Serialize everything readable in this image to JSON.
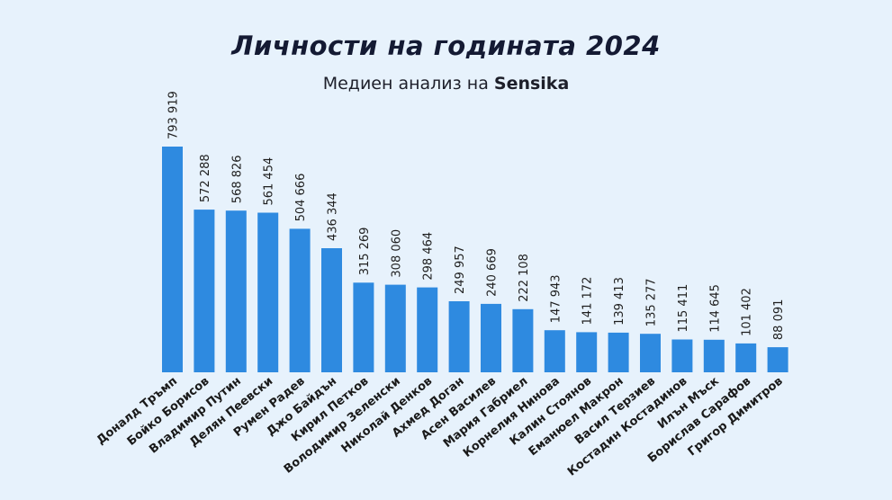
{
  "chart_data": {
    "type": "bar",
    "title": "Личности на годината 2024",
    "subtitle_prefix": "Медиен анализ на ",
    "subtitle_brand": "Sensika",
    "categories": [
      "Доналд Тръмп",
      "Бойко Борисов",
      "Владимир Путин",
      "Делян Пеевски",
      "Румен Радев",
      "Джо Байдън",
      "Кирил Петков",
      "Володимир Зеленски",
      "Николай Денков",
      "Ахмед Доган",
      "Асен Василев",
      "Мария Габриел",
      "Корнелия Нинова",
      "Калин Стоянов",
      "Еманюел Макрон",
      "Васил Терзиев",
      "Костадин Костадинов",
      "Илън Мъск",
      "Борислав Сарафов",
      "Григор Димитров"
    ],
    "values": [
      793919,
      572288,
      568826,
      561454,
      504666,
      436344,
      315269,
      308060,
      298464,
      249957,
      240669,
      222108,
      147943,
      141172,
      139413,
      135277,
      115411,
      114645,
      101402,
      88091
    ],
    "value_labels": [
      "793 919",
      "572 288",
      "568 826",
      "561 454",
      "504 666",
      "436 344",
      "315 269",
      "308 060",
      "298 464",
      "249 957",
      "240 669",
      "222 108",
      "147 943",
      "141 172",
      "139 413",
      "135 277",
      "115 411",
      "114 645",
      "101 402",
      "88 091"
    ],
    "bar_color": "#2e8ae0",
    "background": "#e7f2fc",
    "grid": false,
    "legend": "none"
  }
}
